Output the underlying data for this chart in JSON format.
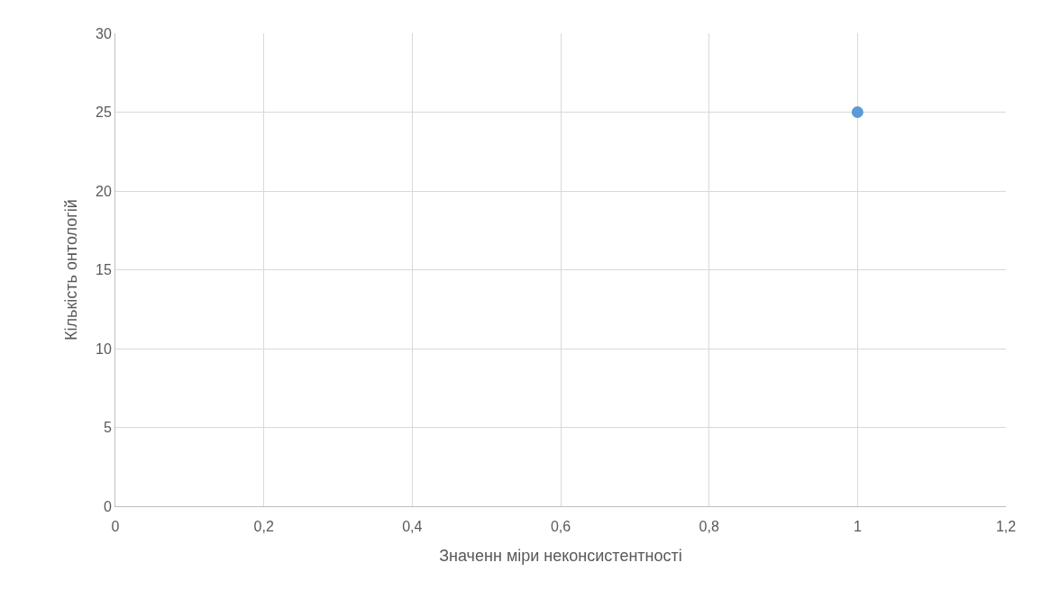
{
  "chart_data": {
    "type": "scatter",
    "xlabel": "Значенн міри неконсистентності",
    "ylabel": "Кількість онтологій",
    "x": [
      1
    ],
    "series": [
      {
        "color": "#5b9bd5",
        "values": [
          25
        ]
      }
    ],
    "xlim": [
      0,
      1.2
    ],
    "xticks": [
      0,
      {
        "value": 0.2,
        "label": "0,2"
      },
      {
        "value": 0.4,
        "label": "0,4"
      },
      {
        "value": 0.6,
        "label": "0,6"
      },
      {
        "value": 0.8,
        "label": "0,8"
      },
      1,
      {
        "value": 1.2,
        "label": "1,2"
      }
    ],
    "ylim": [
      0,
      30
    ],
    "yticks": [
      0,
      5,
      10,
      15,
      20,
      25,
      30
    ],
    "grid": true,
    "marker": "circle"
  }
}
